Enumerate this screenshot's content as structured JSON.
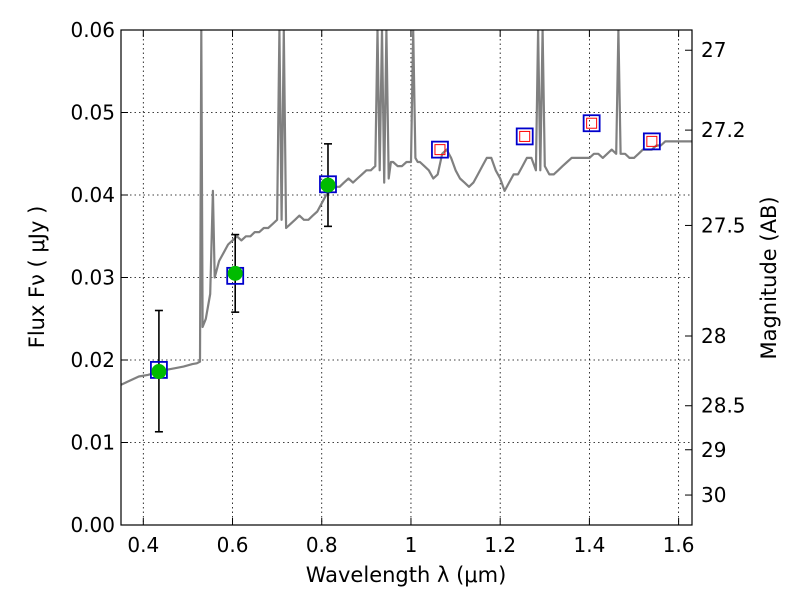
{
  "chart_data": {
    "type": "scatter",
    "title": "",
    "xlabel": "Wavelength  λ (μm)",
    "ylabel": "Flux  Fν  ( μJy )",
    "ylabel_right": "Magnitude (AB)",
    "xlim": [
      0.35,
      1.63
    ],
    "ylim": [
      0.0,
      0.06
    ],
    "grid": true,
    "x_ticks": [
      0.4,
      0.6,
      0.8,
      1.0,
      1.2,
      1.4,
      1.6
    ],
    "x_tick_labels": [
      "0.4",
      "0.6",
      "0.8",
      "1",
      "1.2",
      "1.4",
      "1.6"
    ],
    "y_ticks": [
      0.0,
      0.01,
      0.02,
      0.03,
      0.04,
      0.05,
      0.06
    ],
    "y_tick_labels": [
      "0.00",
      "0.01",
      "0.02",
      "0.03",
      "0.04",
      "0.05",
      "0.06"
    ],
    "right_ticks": [
      {
        "mag": 27,
        "label": "27"
      },
      {
        "mag": 27.2,
        "label": "27.2"
      },
      {
        "mag": 27.5,
        "label": "27.5"
      },
      {
        "mag": 28,
        "label": "28"
      },
      {
        "mag": 28.5,
        "label": "28.5"
      },
      {
        "mag": 29,
        "label": "29"
      },
      {
        "mag": 30,
        "label": "30"
      }
    ],
    "series": [
      {
        "role": "model-spectrum",
        "style": "line",
        "color": "#808080",
        "x": [
          0.35,
          0.37,
          0.39,
          0.41,
          0.43,
          0.45,
          0.47,
          0.49,
          0.51,
          0.52,
          0.527,
          0.53,
          0.533,
          0.54,
          0.55,
          0.556,
          0.56,
          0.57,
          0.58,
          0.59,
          0.6,
          0.61,
          0.62,
          0.63,
          0.64,
          0.65,
          0.66,
          0.67,
          0.68,
          0.69,
          0.7,
          0.705,
          0.71,
          0.715,
          0.72,
          0.73,
          0.74,
          0.75,
          0.76,
          0.77,
          0.78,
          0.79,
          0.8,
          0.81,
          0.82,
          0.83,
          0.84,
          0.85,
          0.86,
          0.87,
          0.88,
          0.89,
          0.9,
          0.91,
          0.92,
          0.925,
          0.93,
          0.935,
          0.94,
          0.945,
          0.95,
          0.955,
          0.96,
          0.97,
          0.98,
          0.99,
          1.0,
          1.005,
          1.01,
          1.015,
          1.02,
          1.03,
          1.04,
          1.05,
          1.06,
          1.07,
          1.08,
          1.09,
          1.1,
          1.11,
          1.12,
          1.13,
          1.14,
          1.15,
          1.16,
          1.17,
          1.18,
          1.19,
          1.2,
          1.21,
          1.22,
          1.23,
          1.24,
          1.25,
          1.26,
          1.27,
          1.28,
          1.285,
          1.29,
          1.295,
          1.3,
          1.31,
          1.32,
          1.33,
          1.34,
          1.35,
          1.36,
          1.37,
          1.38,
          1.39,
          1.4,
          1.41,
          1.42,
          1.43,
          1.44,
          1.45,
          1.46,
          1.465,
          1.47,
          1.48,
          1.49,
          1.5,
          1.51,
          1.52,
          1.53,
          1.54,
          1.55,
          1.56,
          1.57,
          1.58,
          1.59,
          1.6,
          1.61,
          1.63
        ],
        "y": [
          0.017,
          0.0175,
          0.018,
          0.0182,
          0.0185,
          0.0188,
          0.019,
          0.0192,
          0.0195,
          0.0196,
          0.0198,
          0.06,
          0.024,
          0.025,
          0.028,
          0.0405,
          0.03,
          0.032,
          0.033,
          0.034,
          0.0345,
          0.035,
          0.0345,
          0.035,
          0.035,
          0.0355,
          0.0355,
          0.036,
          0.036,
          0.0365,
          0.037,
          0.06,
          0.037,
          0.06,
          0.036,
          0.0365,
          0.037,
          0.0375,
          0.037,
          0.037,
          0.0375,
          0.038,
          0.039,
          0.04,
          0.0405,
          0.041,
          0.041,
          0.0415,
          0.042,
          0.0415,
          0.042,
          0.0425,
          0.043,
          0.043,
          0.0435,
          0.06,
          0.043,
          0.06,
          0.0415,
          0.06,
          0.042,
          0.044,
          0.044,
          0.0435,
          0.0435,
          0.044,
          0.044,
          0.06,
          0.0445,
          0.044,
          0.044,
          0.0435,
          0.043,
          0.042,
          0.0425,
          0.045,
          0.0455,
          0.0445,
          0.043,
          0.042,
          0.0415,
          0.041,
          0.0415,
          0.0425,
          0.0435,
          0.0445,
          0.0445,
          0.043,
          0.042,
          0.0405,
          0.0415,
          0.0425,
          0.0425,
          0.0435,
          0.0445,
          0.0445,
          0.043,
          0.06,
          0.043,
          0.06,
          0.0435,
          0.0425,
          0.0425,
          0.043,
          0.0435,
          0.044,
          0.0445,
          0.0445,
          0.0445,
          0.0445,
          0.0445,
          0.045,
          0.045,
          0.0445,
          0.045,
          0.0455,
          0.045,
          0.06,
          0.045,
          0.045,
          0.0445,
          0.0445,
          0.045,
          0.0455,
          0.0455,
          0.0455,
          0.046,
          0.046,
          0.0465,
          0.0465,
          0.0465,
          0.0465,
          0.0465,
          0.0465
        ]
      },
      {
        "role": "model-bandpass-fluxes",
        "style": "open-square",
        "color": "#0000cc",
        "x": [
          0.435,
          0.606,
          0.814,
          1.065,
          1.255,
          1.405,
          1.54
        ],
        "y": [
          0.0188,
          0.0302,
          0.0413,
          0.0455,
          0.0471,
          0.0487,
          0.0465
        ]
      },
      {
        "role": "observed-photometry",
        "style": "filled-circle",
        "color": "#00bb00",
        "x": [
          0.435,
          0.606,
          0.814
        ],
        "y": [
          0.0186,
          0.0305,
          0.0412
        ],
        "yerr_low": [
          0.0113,
          0.0258,
          0.0362
        ],
        "yerr_high": [
          0.026,
          0.0352,
          0.0462
        ]
      },
      {
        "role": "upper-limits",
        "style": "small-open-square",
        "color": "#ff0000",
        "x": [
          1.065,
          1.255,
          1.405,
          1.54
        ],
        "y": [
          0.0455,
          0.0471,
          0.0487,
          0.0465
        ]
      }
    ]
  }
}
